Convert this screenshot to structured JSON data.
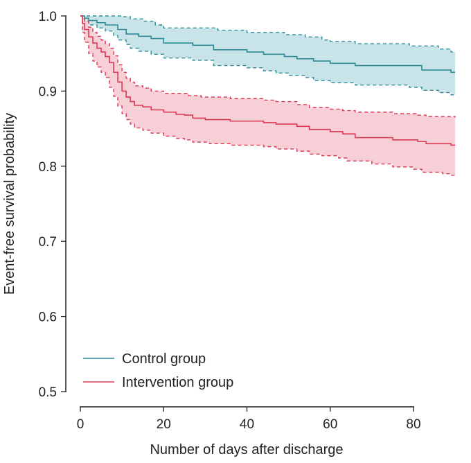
{
  "chart_data": {
    "type": "line",
    "title": "",
    "xlabel": "Number of days after discharge",
    "ylabel": "Event-free survival probability",
    "xlim": [
      -2,
      91
    ],
    "ylim": [
      0.485,
      1.01
    ],
    "xticks": [
      0,
      20,
      40,
      60,
      80
    ],
    "yticks": [
      0.5,
      0.6,
      0.7,
      0.8,
      0.9,
      1.0
    ],
    "ytick_labels": [
      "0.5",
      "0.6",
      "0.7",
      "0.8",
      "0.9",
      "1.0"
    ],
    "grid": false,
    "legend_position": "bottom-left",
    "series": [
      {
        "name": "Control group",
        "color": "#2b8c96",
        "fill_color": "#c8e4e8",
        "survival": [
          [
            0,
            1.0
          ],
          [
            1,
            0.997
          ],
          [
            2,
            0.994
          ],
          [
            4,
            0.991
          ],
          [
            6,
            0.988
          ],
          [
            9,
            0.982
          ],
          [
            11,
            0.976
          ],
          [
            14,
            0.973
          ],
          [
            17,
            0.97
          ],
          [
            20,
            0.964
          ],
          [
            27,
            0.961
          ],
          [
            32,
            0.955
          ],
          [
            40,
            0.952
          ],
          [
            44,
            0.949
          ],
          [
            49,
            0.946
          ],
          [
            52,
            0.943
          ],
          [
            56,
            0.94
          ],
          [
            60,
            0.937
          ],
          [
            66,
            0.934
          ],
          [
            82,
            0.928
          ],
          [
            89,
            0.925
          ],
          [
            90,
            0.925
          ]
        ],
        "upper_ci": [
          [
            0,
            1.0
          ],
          [
            1,
            1.0
          ],
          [
            10,
            0.999
          ],
          [
            12,
            0.996
          ],
          [
            15,
            0.993
          ],
          [
            18,
            0.988
          ],
          [
            20,
            0.984
          ],
          [
            33,
            0.981
          ],
          [
            40,
            0.978
          ],
          [
            49,
            0.975
          ],
          [
            54,
            0.972
          ],
          [
            58,
            0.968
          ],
          [
            60,
            0.966
          ],
          [
            66,
            0.963
          ],
          [
            79,
            0.96
          ],
          [
            86,
            0.956
          ],
          [
            89,
            0.952
          ],
          [
            90,
            0.952
          ]
        ],
        "lower_ci": [
          [
            0,
            1.0
          ],
          [
            1,
            0.993
          ],
          [
            2,
            0.988
          ],
          [
            4,
            0.984
          ],
          [
            6,
            0.98
          ],
          [
            8,
            0.974
          ],
          [
            9,
            0.968
          ],
          [
            11,
            0.962
          ],
          [
            12,
            0.957
          ],
          [
            14,
            0.953
          ],
          [
            17,
            0.949
          ],
          [
            20,
            0.944
          ],
          [
            27,
            0.941
          ],
          [
            32,
            0.934
          ],
          [
            40,
            0.931
          ],
          [
            44,
            0.927
          ],
          [
            47,
            0.924
          ],
          [
            50,
            0.921
          ],
          [
            54,
            0.918
          ],
          [
            56,
            0.914
          ],
          [
            60,
            0.911
          ],
          [
            66,
            0.908
          ],
          [
            79,
            0.905
          ],
          [
            82,
            0.901
          ],
          [
            86,
            0.898
          ],
          [
            89,
            0.895
          ],
          [
            90,
            0.895
          ]
        ]
      },
      {
        "name": "Intervention group",
        "color": "#d83a54",
        "fill_color": "#f7cfd6",
        "survival": [
          [
            0,
            1.0
          ],
          [
            0.5,
            0.99
          ],
          [
            1,
            0.982
          ],
          [
            2,
            0.972
          ],
          [
            3,
            0.964
          ],
          [
            4,
            0.957
          ],
          [
            5,
            0.952
          ],
          [
            6,
            0.946
          ],
          [
            7,
            0.938
          ],
          [
            8,
            0.925
          ],
          [
            9,
            0.912
          ],
          [
            10,
            0.9
          ],
          [
            11,
            0.892
          ],
          [
            12,
            0.886
          ],
          [
            13,
            0.881
          ],
          [
            15,
            0.879
          ],
          [
            17,
            0.875
          ],
          [
            20,
            0.872
          ],
          [
            23,
            0.869
          ],
          [
            25,
            0.868
          ],
          [
            27,
            0.864
          ],
          [
            30,
            0.862
          ],
          [
            36,
            0.86
          ],
          [
            44,
            0.858
          ],
          [
            47,
            0.856
          ],
          [
            52,
            0.853
          ],
          [
            55,
            0.849
          ],
          [
            60,
            0.846
          ],
          [
            63,
            0.843
          ],
          [
            66,
            0.838
          ],
          [
            75,
            0.835
          ],
          [
            81,
            0.833
          ],
          [
            83,
            0.83
          ],
          [
            89,
            0.828
          ],
          [
            90,
            0.828
          ]
        ],
        "upper_ci": [
          [
            0,
            1.0
          ],
          [
            0.5,
            0.998
          ],
          [
            1,
            0.993
          ],
          [
            2,
            0.985
          ],
          [
            3,
            0.978
          ],
          [
            4,
            0.973
          ],
          [
            5,
            0.968
          ],
          [
            6,
            0.963
          ],
          [
            7,
            0.957
          ],
          [
            8,
            0.947
          ],
          [
            9,
            0.935
          ],
          [
            10,
            0.925
          ],
          [
            11,
            0.917
          ],
          [
            12,
            0.912
          ],
          [
            13,
            0.907
          ],
          [
            15,
            0.904
          ],
          [
            17,
            0.9
          ],
          [
            20,
            0.897
          ],
          [
            26,
            0.894
          ],
          [
            29,
            0.892
          ],
          [
            36,
            0.89
          ],
          [
            44,
            0.888
          ],
          [
            47,
            0.886
          ],
          [
            52,
            0.882
          ],
          [
            55,
            0.878
          ],
          [
            60,
            0.876
          ],
          [
            63,
            0.874
          ],
          [
            66,
            0.872
          ],
          [
            75,
            0.87
          ],
          [
            81,
            0.868
          ],
          [
            83,
            0.866
          ],
          [
            88,
            0.866
          ],
          [
            90,
            0.865
          ]
        ],
        "lower_ci": [
          [
            0,
            1.0
          ],
          [
            0.5,
            0.978
          ],
          [
            1,
            0.965
          ],
          [
            2,
            0.95
          ],
          [
            3,
            0.94
          ],
          [
            4,
            0.932
          ],
          [
            5,
            0.925
          ],
          [
            6,
            0.918
          ],
          [
            7,
            0.905
          ],
          [
            8,
            0.893
          ],
          [
            9,
            0.88
          ],
          [
            10,
            0.87
          ],
          [
            11,
            0.862
          ],
          [
            12,
            0.856
          ],
          [
            13,
            0.851
          ],
          [
            15,
            0.848
          ],
          [
            17,
            0.844
          ],
          [
            20,
            0.84
          ],
          [
            23,
            0.837
          ],
          [
            25,
            0.835
          ],
          [
            27,
            0.832
          ],
          [
            31,
            0.83
          ],
          [
            36,
            0.828
          ],
          [
            44,
            0.826
          ],
          [
            47,
            0.823
          ],
          [
            52,
            0.82
          ],
          [
            55,
            0.816
          ],
          [
            58,
            0.814
          ],
          [
            62,
            0.811
          ],
          [
            64,
            0.807
          ],
          [
            70,
            0.803
          ],
          [
            75,
            0.799
          ],
          [
            80,
            0.796
          ],
          [
            82,
            0.792
          ],
          [
            87,
            0.79
          ],
          [
            89,
            0.788
          ],
          [
            90,
            0.788
          ]
        ]
      }
    ]
  }
}
